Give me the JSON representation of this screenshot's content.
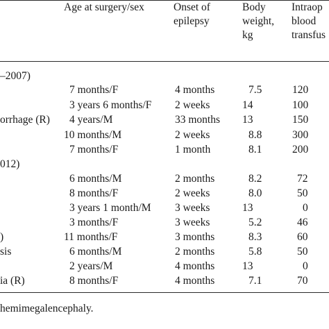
{
  "header": {
    "col_age": "Age at surgery/sex",
    "col_onset": [
      "Onset of",
      "epilepsy"
    ],
    "col_weight": [
      "Body",
      "weight,",
      "kg"
    ],
    "col_intraop": [
      "Intraop",
      "blood",
      "transfus"
    ]
  },
  "sections": [
    {
      "heading": "–2007)",
      "rows": [
        {
          "label": "",
          "age": "7 months/F",
          "onset": "4 months",
          "weight": "7.5",
          "intraop": "120"
        },
        {
          "label": "",
          "age": "3 years 6 months/F",
          "onset": "2 weeks",
          "weight": "14",
          "intraop": "100"
        },
        {
          "label": "orrhage (R)",
          "age": "4 years/M",
          "onset": "33 months",
          "weight": "13",
          "intraop": "150"
        },
        {
          "label": "",
          "age": "10 months/M",
          "onset": "2 weeks",
          "weight": "8.8",
          "intraop": "300"
        },
        {
          "label": "",
          "age": "7 months/F",
          "onset": "1 month",
          "weight": "8.1",
          "intraop": "200"
        }
      ]
    },
    {
      "heading": "012)",
      "rows": [
        {
          "label": "",
          "age": "6 months/M",
          "onset": "2 months",
          "weight": "8.2",
          "intraop": "72"
        },
        {
          "label": "",
          "age": "8 months/F",
          "onset": "2 weeks",
          "weight": "8.0",
          "intraop": "50"
        },
        {
          "label": "",
          "age": "3 years 1 month/M",
          "onset": "3 weeks",
          "weight": "13",
          "intraop": "0"
        },
        {
          "label": "",
          "age": "3 months/F",
          "onset": "3 weeks",
          "weight": "5.2",
          "intraop": "46"
        },
        {
          "label": ")",
          "age": "11 months/F",
          "onset": "3 months",
          "weight": "8.3",
          "intraop": "60"
        },
        {
          "label": "sis",
          "age": "6 months/M",
          "onset": "2 months",
          "weight": "5.8",
          "intraop": "50"
        },
        {
          "label": "",
          "age": "2 years/M",
          "onset": "4 months",
          "weight": "13",
          "intraop": "0"
        },
        {
          "label": "ia (R)",
          "age": "8 months/F",
          "onset": "4 months",
          "weight": "7.1",
          "intraop": "70"
        }
      ]
    }
  ],
  "footnote": "hemimegalencephaly."
}
